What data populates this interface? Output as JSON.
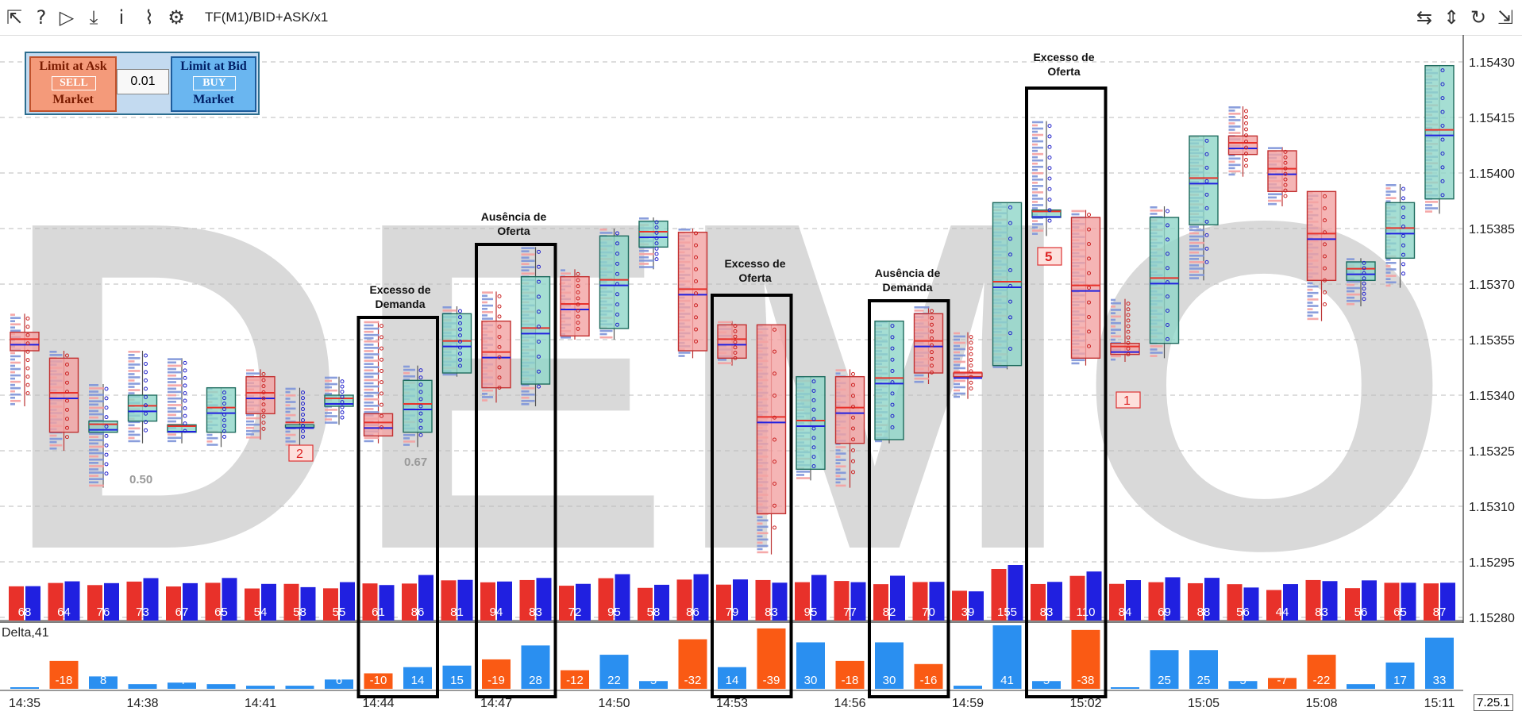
{
  "toolbar": {
    "title": "TF(M1)/BID+ASK/x1",
    "left_icons": [
      "cursor-arrow-icon",
      "help-icon",
      "play-icon",
      "download-icon",
      "info-icon",
      "chart-icon",
      "gear-icon"
    ],
    "right_icons": [
      "horizontal-resize-icon",
      "vertical-resize-icon",
      "refresh-icon",
      "collapse-icon"
    ]
  },
  "trade_panel": {
    "sell_limit": "Limit at Ask",
    "sell": "SELL",
    "sell_market": "Market",
    "quantity": "0.01",
    "buy_limit": "Limit at Bid",
    "buy": "BUY",
    "buy_market": "Market"
  },
  "watermark": "DEMO",
  "price_axis": [
    "1.15430",
    "1.15415",
    "1.15400",
    "1.15385",
    "1.15370",
    "1.15355",
    "1.15340",
    "1.15325",
    "1.15310",
    "1.15295",
    "1.15280"
  ],
  "time_axis": [
    "14:35",
    "14:38",
    "14:41",
    "14:44",
    "14:47",
    "14:50",
    "14:53",
    "14:56",
    "14:59",
    "15:02",
    "15:05",
    "15:08",
    "15:11"
  ],
  "volume_labels": [
    "68",
    "64",
    "76",
    "73",
    "67",
    "65",
    "54",
    "58",
    "55",
    "61",
    "86",
    "81",
    "94",
    "83",
    "72",
    "95",
    "58",
    "86",
    "79",
    "83",
    "95",
    "77",
    "82",
    "70",
    "39",
    "155",
    "83",
    "110",
    "84",
    "69",
    "88",
    "56",
    "44",
    "83",
    "56",
    "65",
    "87"
  ],
  "delta_title": "Delta,41",
  "delta_values": [
    1,
    -18,
    8,
    3,
    4,
    3,
    2,
    2,
    6,
    -10,
    14,
    15,
    -19,
    28,
    -12,
    22,
    5,
    -32,
    14,
    -39,
    30,
    -18,
    30,
    -16,
    2,
    41,
    5,
    -38,
    1,
    25,
    25,
    5,
    -7,
    -22,
    3,
    17,
    33
  ],
  "annotations": [
    {
      "line1": "Excesso de",
      "line2": "Demanda"
    },
    {
      "line1": "Ausência de",
      "line2": "Oferta"
    },
    {
      "line1": "Excesso de",
      "line2": "Oferta"
    },
    {
      "line1": "Ausência de",
      "line2": "Demanda"
    },
    {
      "line1": "Excesso de",
      "line2": "Oferta"
    }
  ],
  "markers": {
    "m_050": "0.50",
    "m_067": "0.67",
    "m_2": "2",
    "m_5": "5",
    "m_1": "1"
  },
  "version": "7.25.1",
  "colors": {
    "sell": "#e8312a",
    "buy": "#2020e0",
    "delta_pos": "#2a8ff0",
    "delta_neg": "#fa5a14",
    "bull_body": "#8fd6c8",
    "bear_body": "#f3a3a3"
  }
}
